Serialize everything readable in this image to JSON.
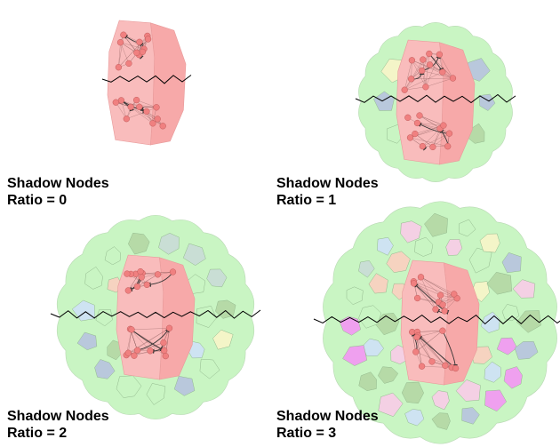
{
  "panels": [
    {
      "title": "Shadow Nodes",
      "ratio_text": "Ratio = 0",
      "ratio": 0
    },
    {
      "title": "Shadow Nodes",
      "ratio_text": "Ratio = 1",
      "ratio": 1
    },
    {
      "title": "Shadow Nodes",
      "ratio_text": "Ratio = 2",
      "ratio": 2
    },
    {
      "title": "Shadow Nodes",
      "ratio_text": "Ratio = 3",
      "ratio": 3
    }
  ],
  "colors": {
    "core_region": "#f9bcbc",
    "core_region_dark": "#f7a9a9",
    "core_outline": "#e89a9a",
    "graph_node": "#f08080",
    "graph_edge": "#8a5a5a",
    "shadow_green": "#c9f5c3",
    "shadow_blue": "#cfe3f5",
    "shadow_gray": "#c9ddd7",
    "shadow_slate": "#b9c6de",
    "shadow_dark_green": "#b5d9a6",
    "shadow_yellow": "#f7f5c9",
    "shadow_magenta": "#f29cf2",
    "shadow_orange": "#f9d2c0",
    "shadow_pink": "#f7cfe6",
    "boundary_line": "#000000"
  }
}
